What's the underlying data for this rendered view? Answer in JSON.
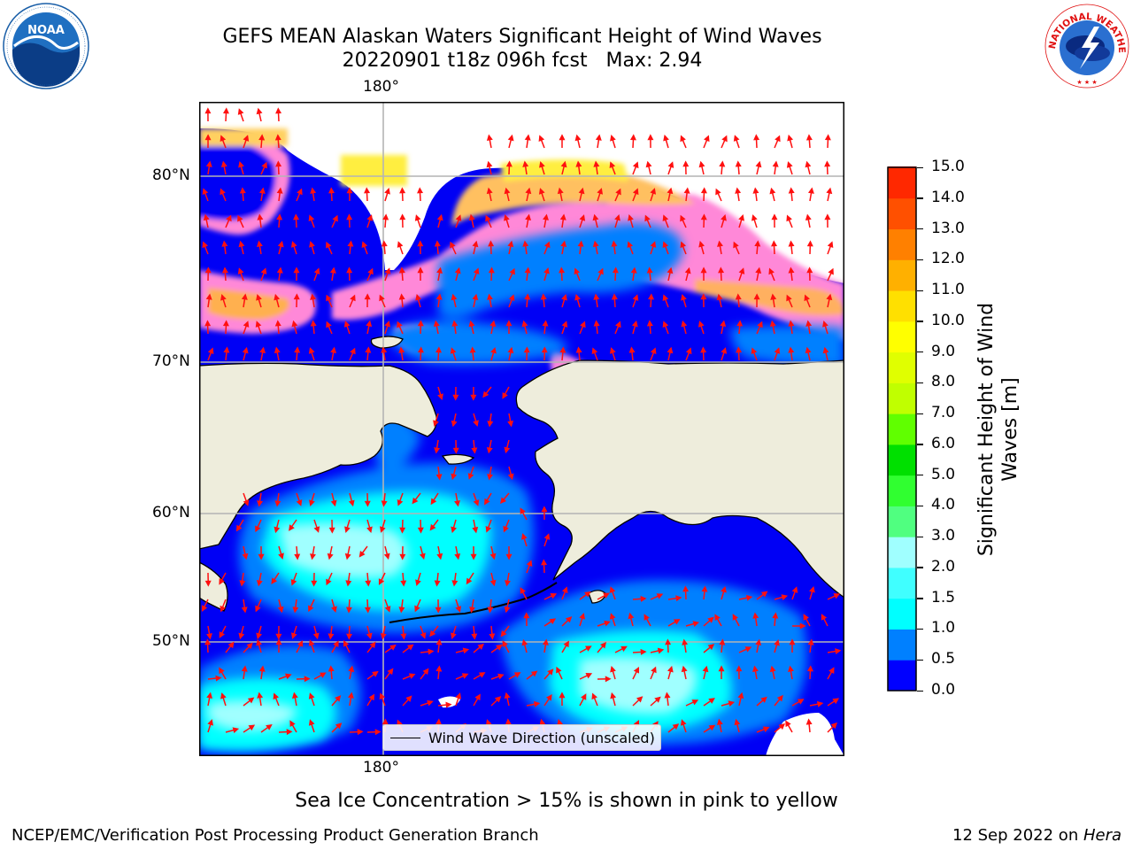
{
  "title": {
    "line1": "GEFS MEAN Alaskan Waters Significant Height of Wind Waves",
    "line2": "20220901 t18z 096h fcst   Max: 2.94"
  },
  "axes": {
    "lon_top": "180°",
    "lon_bottom": "180°",
    "lat_labels": [
      "80°N",
      "70°N",
      "60°N",
      "50°N"
    ]
  },
  "legend": {
    "label": "Wind Wave Direction (unscaled)"
  },
  "colorbar": {
    "title_line1": "Significant Height of Wind",
    "title_line2": "Waves [m]",
    "ticks": [
      "15.0",
      "14.0",
      "13.0",
      "12.0",
      "11.0",
      "10.0",
      "9.0",
      "8.0",
      "7.0",
      "6.0",
      "5.0",
      "4.0",
      "3.0",
      "2.0",
      "1.5",
      "1.0",
      "0.5",
      "0.0"
    ],
    "colors": [
      "#0000ff",
      "#0080ff",
      "#00ffff",
      "#40ffff",
      "#a0ffff",
      "#50ff80",
      "#30ff30",
      "#00e000",
      "#60ff00",
      "#c0ff00",
      "#e0ff00",
      "#ffff00",
      "#ffe000",
      "#ffb000",
      "#ff8000",
      "#ff5000",
      "#ff2800",
      "#ff0000"
    ]
  },
  "ice_note": "Sea Ice Concentration > 15% is shown in pink to yellow",
  "footer": {
    "left": "NCEP/EMC/Verification Post Processing Product Generation Branch",
    "right_prefix": "12 Sep 2022 on ",
    "right_machine": "Hera"
  },
  "logos": {
    "noaa": "NOAA",
    "nws": "NATIONAL WEATHER SERVICE"
  }
}
